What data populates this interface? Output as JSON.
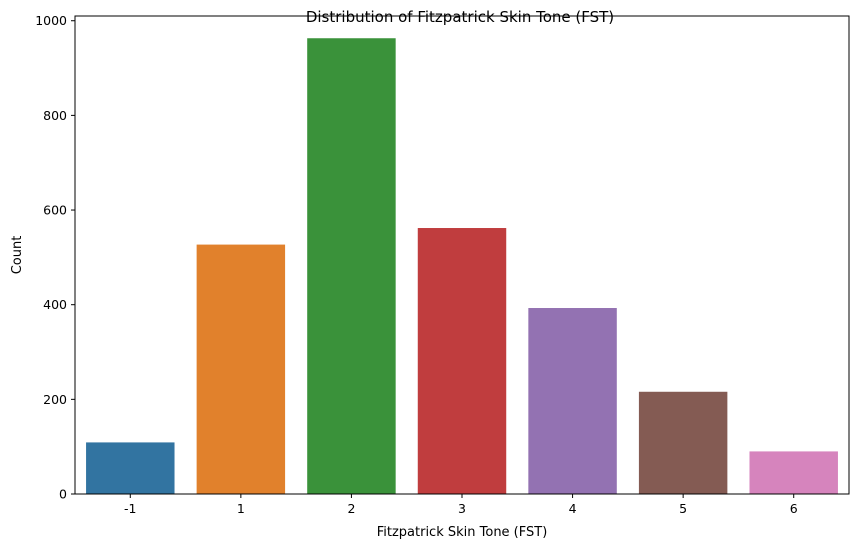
{
  "chart_data": {
    "type": "bar",
    "title": "Distribution of Fitzpatrick Skin Tone (FST)",
    "xlabel": "Fitzpatrick Skin Tone (FST)",
    "ylabel": "Count",
    "categories": [
      "-1",
      "1",
      "2",
      "3",
      "4",
      "5",
      "6"
    ],
    "values": [
      109,
      527,
      963,
      562,
      393,
      216,
      90
    ],
    "colors": [
      "#3274a1",
      "#e1812c",
      "#3a923a",
      "#c03d3e",
      "#9372b2",
      "#845b53",
      "#d684bd"
    ],
    "ylim": [
      0,
      1010
    ],
    "yticks": [
      0,
      200,
      400,
      600,
      800,
      1000
    ],
    "grid": false,
    "legend": "none"
  }
}
